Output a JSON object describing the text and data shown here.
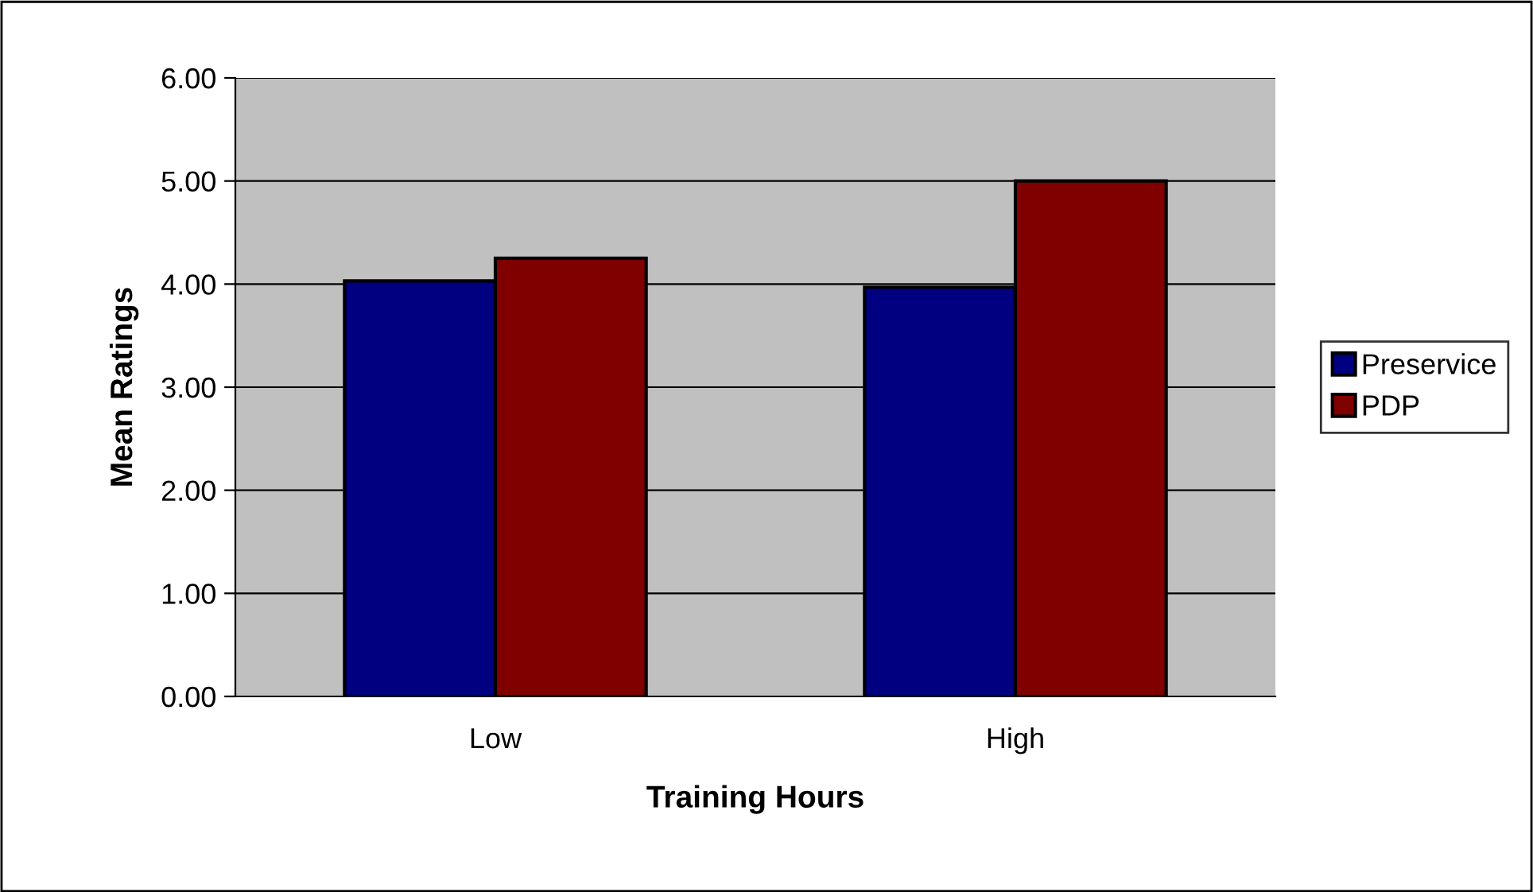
{
  "chart_data": {
    "type": "bar",
    "xlabel": "Training Hours",
    "ylabel": "Mean Ratings",
    "categories": [
      "Low",
      "High"
    ],
    "series": [
      {
        "name": "Preservice",
        "color": "#000080",
        "values": [
          4.03,
          3.97
        ]
      },
      {
        "name": "PDP",
        "color": "#800000",
        "values": [
          4.25,
          5.0
        ]
      }
    ],
    "ylim": [
      0,
      6
    ],
    "yticks": [
      {
        "value": 0,
        "label": "0.00"
      },
      {
        "value": 1,
        "label": "1.00"
      },
      {
        "value": 2,
        "label": "2.00"
      },
      {
        "value": 3,
        "label": "3.00"
      },
      {
        "value": 4,
        "label": "4.00"
      },
      {
        "value": 5,
        "label": "5.00"
      },
      {
        "value": 6,
        "label": "6.00"
      }
    ],
    "grid": "y",
    "legend": "right"
  }
}
